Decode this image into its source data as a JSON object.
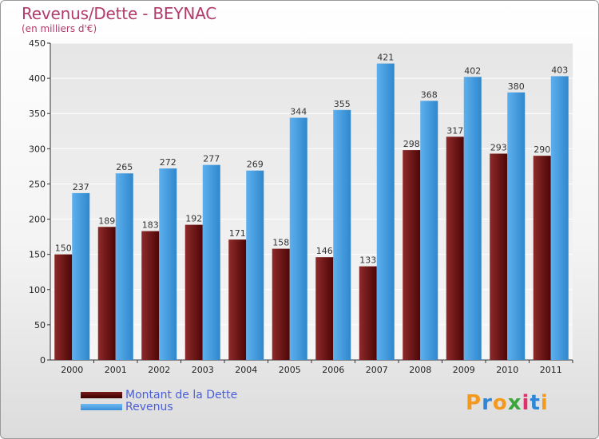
{
  "header": {
    "title": "Revenus/Dette - BEYNAC",
    "subtitle": "(en milliers d'€)"
  },
  "colors": {
    "dette": "#6b1212",
    "revenus": "#4a9fe0",
    "title": "#b23b6b",
    "legend_text": "#4a5ed8"
  },
  "chart_data": {
    "type": "bar",
    "title": "Revenus/Dette - BEYNAC",
    "subtitle": "(en milliers d'€)",
    "categories": [
      "2000",
      "2001",
      "2002",
      "2003",
      "2004",
      "2005",
      "2006",
      "2007",
      "2008",
      "2009",
      "2010",
      "2011"
    ],
    "series": [
      {
        "name": "Montant de la Dette",
        "values": [
          150,
          189,
          183,
          192,
          171,
          158,
          146,
          133,
          298,
          317,
          293,
          290
        ]
      },
      {
        "name": "Revenus",
        "values": [
          237,
          265,
          272,
          277,
          269,
          344,
          355,
          421,
          368,
          402,
          380,
          403
        ]
      }
    ],
    "ylim": [
      0,
      450
    ],
    "yticks": [
      0,
      50,
      100,
      150,
      200,
      250,
      300,
      350,
      400,
      450
    ],
    "grid": true,
    "legend_position": "bottom-left"
  },
  "legend": {
    "items": [
      {
        "label": "Montant de la Dette"
      },
      {
        "label": "Revenus"
      }
    ]
  },
  "logo": {
    "text": "Proxiti"
  }
}
